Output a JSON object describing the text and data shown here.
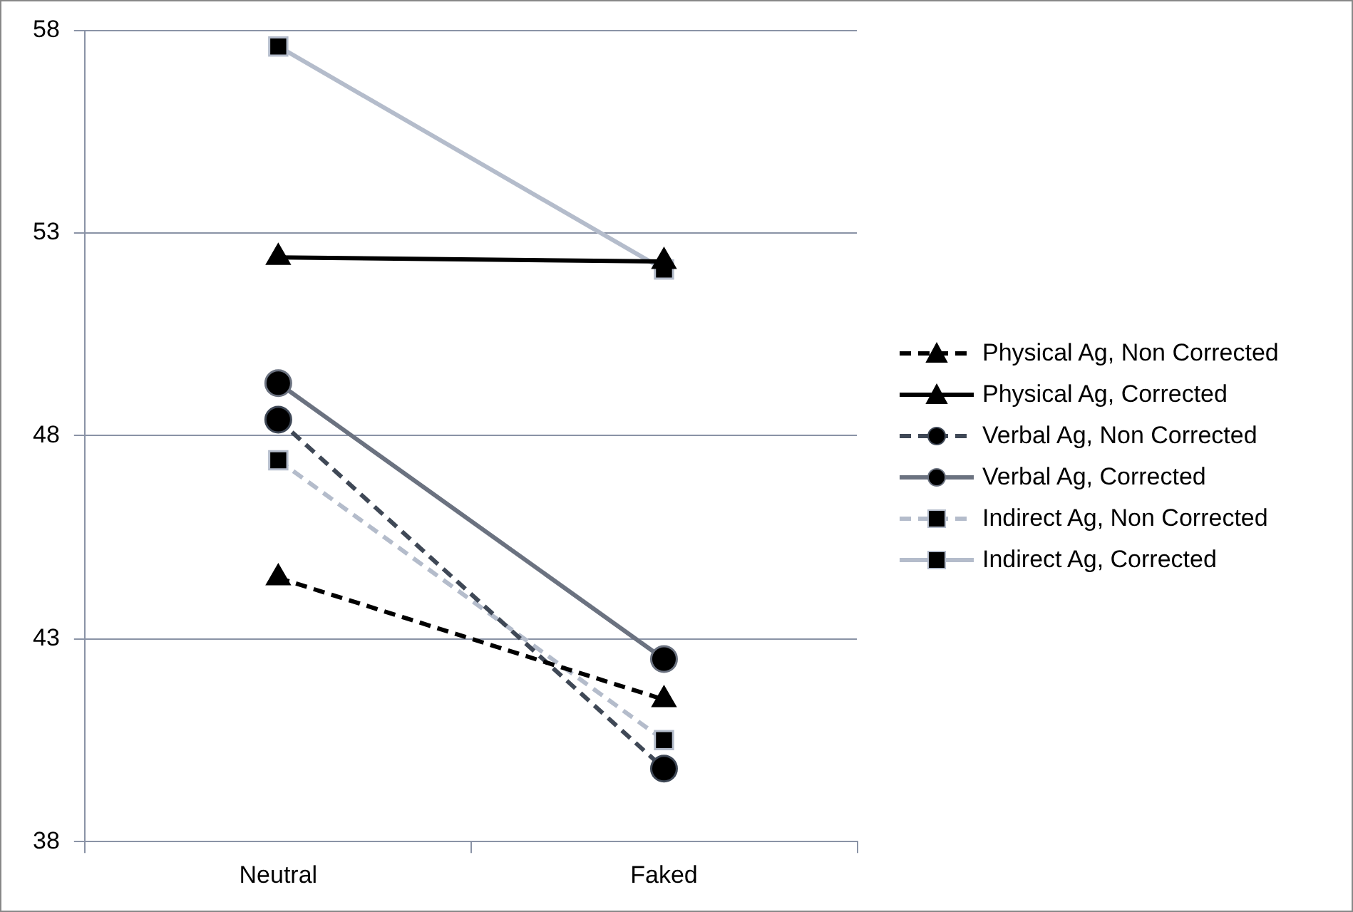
{
  "chart_data": {
    "type": "line",
    "categories": [
      "Neutral",
      "Faked"
    ],
    "series": [
      {
        "name": "Physical Ag, Non  Corrected",
        "color": "#000000",
        "values": [
          44.5,
          41.5
        ],
        "marker": "triangle",
        "line_style": "dashed"
      },
      {
        "name": "Physical Ag, Corrected",
        "color": "#000000",
        "values": [
          52.4,
          52.3
        ],
        "marker": "triangle",
        "line_style": "solid"
      },
      {
        "name": "Verbal Ag, Non  Corrected",
        "color": "#3f4856",
        "values": [
          48.4,
          39.8
        ],
        "marker": "circle",
        "line_style": "dashed"
      },
      {
        "name": "Verbal Ag,  Corrected",
        "color": "#6b7280",
        "values": [
          49.3,
          42.5
        ],
        "marker": "circle",
        "line_style": "solid"
      },
      {
        "name": "Indirect Ag, Non  Corrected",
        "color": "#b4bccb",
        "values": [
          47.4,
          40.5
        ],
        "marker": "square",
        "line_style": "dashed"
      },
      {
        "name": "Indirect Ag,  Corrected",
        "color": "#b4bccb",
        "values": [
          57.6,
          52.1
        ],
        "marker": "square",
        "line_style": "solid"
      }
    ],
    "ylim": [
      38,
      58
    ],
    "yticks": [
      38,
      43,
      48,
      53,
      58
    ],
    "grid": "y",
    "legend": "right"
  }
}
